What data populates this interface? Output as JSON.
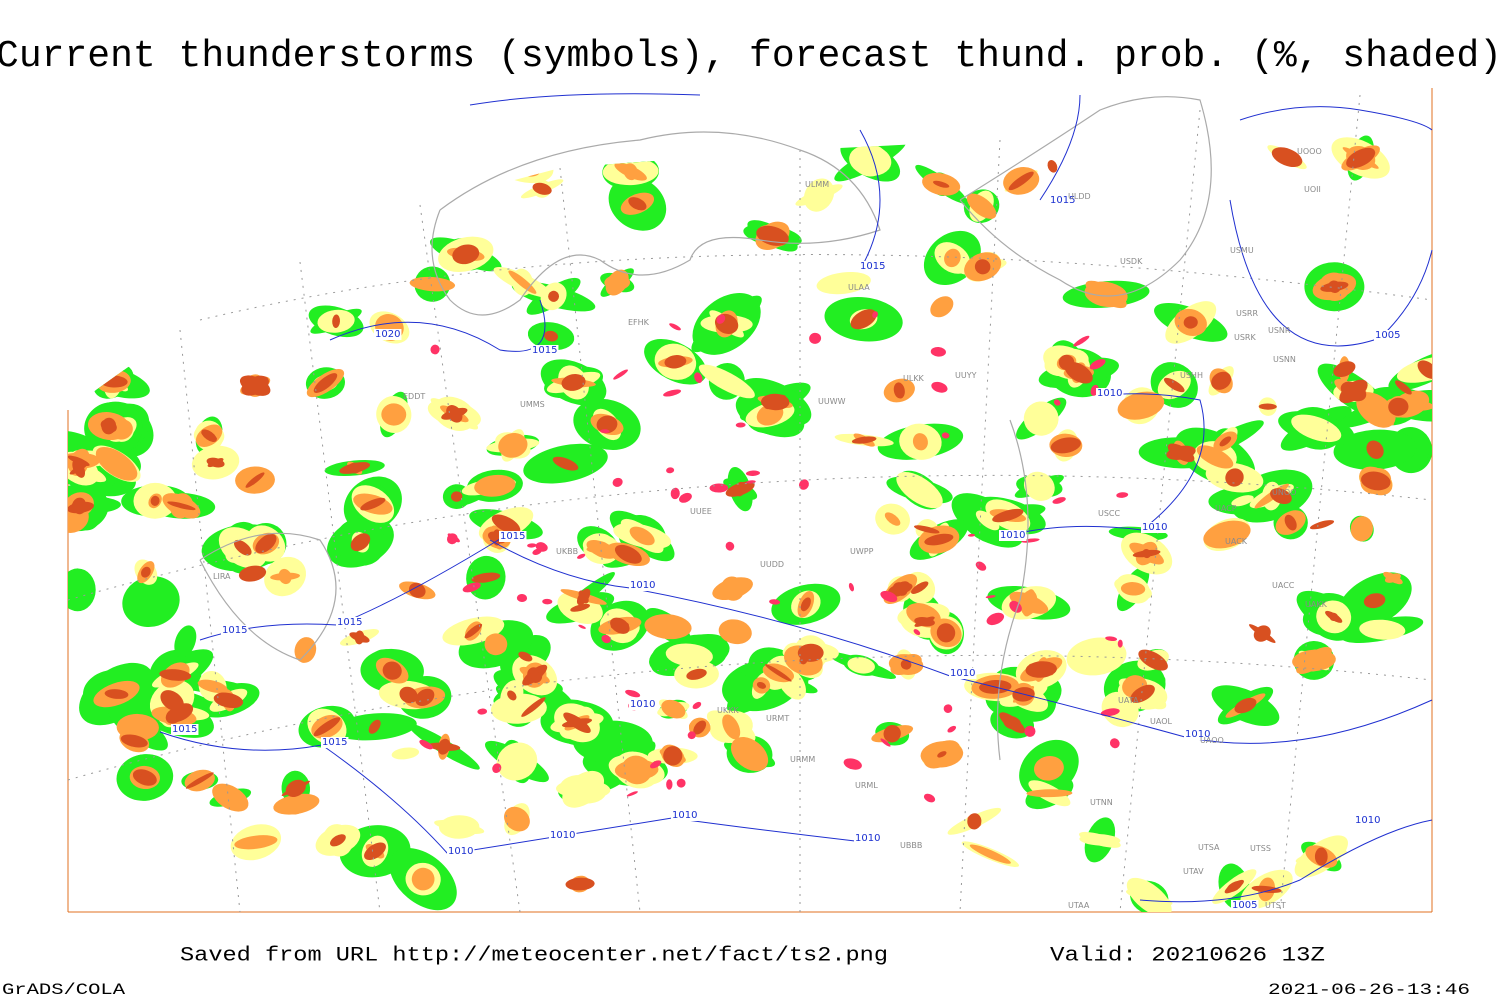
{
  "header": {
    "title": "Current thunderstorms (symbols), forecast thund. prob. (%, shaded)"
  },
  "map": {
    "isobar_labels": [
      "1010",
      "1010",
      "1010",
      "1010",
      "1010",
      "1010",
      "1010",
      "1010",
      "1010",
      "1010",
      "1010",
      "1010",
      "1015",
      "1015",
      "1015",
      "1015",
      "1015",
      "1015",
      "1015",
      "1015",
      "1020",
      "1005",
      "1005"
    ],
    "station_labels": [
      "EFHK",
      "ULAA",
      "ULMM",
      "ULDD",
      "USDK",
      "UUYY",
      "ULKK",
      "USHH",
      "UWPP",
      "UUDD",
      "URMT",
      "URMM",
      "URML",
      "UBBB",
      "UTAA",
      "UTNN",
      "UATA",
      "UAOL",
      "UAOO",
      "UACC",
      "UAKK",
      "UNOO",
      "UACP",
      "UACK",
      "USCC",
      "USNR",
      "USNN",
      "USRR",
      "USRK",
      "USMU",
      "UOII",
      "UOOO",
      "UTSS",
      "UTSA",
      "UTAV",
      "UTST",
      "LIRA",
      "EDDT",
      "UKKK",
      "UKBB",
      "UUEE",
      "UUWW",
      "UMMS"
    ]
  },
  "footer": {
    "source": "Saved from URL http://meteocenter.net/fact/ts2.png",
    "valid": "Valid: 20210626 13Z",
    "software": "GrADS/COLA",
    "timestamp": "2021-06-26-13:46"
  }
}
